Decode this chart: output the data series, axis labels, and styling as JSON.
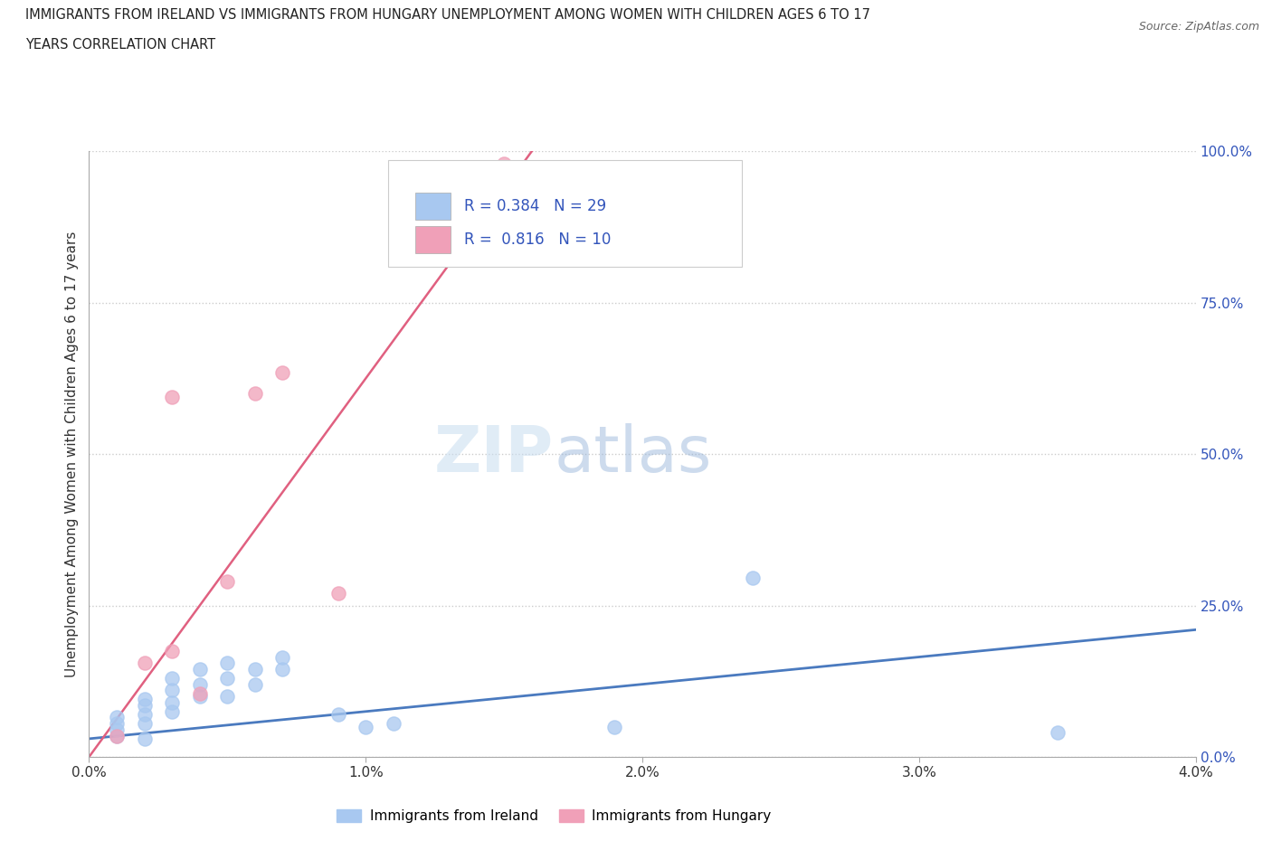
{
  "title_line1": "IMMIGRANTS FROM IRELAND VS IMMIGRANTS FROM HUNGARY UNEMPLOYMENT AMONG WOMEN WITH CHILDREN AGES 6 TO 17",
  "title_line2": "YEARS CORRELATION CHART",
  "source": "Source: ZipAtlas.com",
  "ylabel": "Unemployment Among Women with Children Ages 6 to 17 years",
  "xlim": [
    0.0,
    0.04
  ],
  "ylim": [
    0.0,
    1.0
  ],
  "xtick_labels": [
    "0.0%",
    "1.0%",
    "2.0%",
    "3.0%",
    "4.0%"
  ],
  "xtick_vals": [
    0.0,
    0.01,
    0.02,
    0.03,
    0.04
  ],
  "ytick_labels": [
    "0.0%",
    "25.0%",
    "50.0%",
    "75.0%",
    "100.0%"
  ],
  "ytick_vals": [
    0.0,
    0.25,
    0.5,
    0.75,
    1.0
  ],
  "ireland_color": "#a8c8f0",
  "hungary_color": "#f0a0b8",
  "ireland_line_color": "#4a7abf",
  "hungary_line_color": "#e06080",
  "ireland_R": 0.384,
  "ireland_N": 29,
  "hungary_R": 0.816,
  "hungary_N": 10,
  "ireland_x": [
    0.001,
    0.001,
    0.001,
    0.001,
    0.002,
    0.002,
    0.002,
    0.002,
    0.002,
    0.003,
    0.003,
    0.003,
    0.003,
    0.004,
    0.004,
    0.004,
    0.005,
    0.005,
    0.005,
    0.006,
    0.006,
    0.007,
    0.007,
    0.009,
    0.01,
    0.011,
    0.019,
    0.024,
    0.035
  ],
  "ireland_y": [
    0.035,
    0.045,
    0.055,
    0.065,
    0.03,
    0.055,
    0.07,
    0.085,
    0.095,
    0.075,
    0.09,
    0.11,
    0.13,
    0.1,
    0.12,
    0.145,
    0.1,
    0.13,
    0.155,
    0.12,
    0.145,
    0.145,
    0.165,
    0.07,
    0.05,
    0.055,
    0.05,
    0.295,
    0.04
  ],
  "hungary_x": [
    0.001,
    0.002,
    0.003,
    0.003,
    0.004,
    0.005,
    0.006,
    0.007,
    0.009,
    0.015
  ],
  "hungary_y": [
    0.035,
    0.155,
    0.175,
    0.595,
    0.105,
    0.29,
    0.6,
    0.635,
    0.27,
    0.98
  ],
  "ireland_line_x": [
    0.0,
    0.04
  ],
  "ireland_line_y": [
    0.03,
    0.21
  ],
  "hungary_line_x": [
    0.0,
    0.016
  ],
  "hungary_line_y": [
    0.0,
    1.0
  ],
  "watermark_zip": "ZIP",
  "watermark_atlas": "atlas",
  "background_color": "#ffffff",
  "grid_color": "#cccccc",
  "legend_text_color": "#3355bb"
}
